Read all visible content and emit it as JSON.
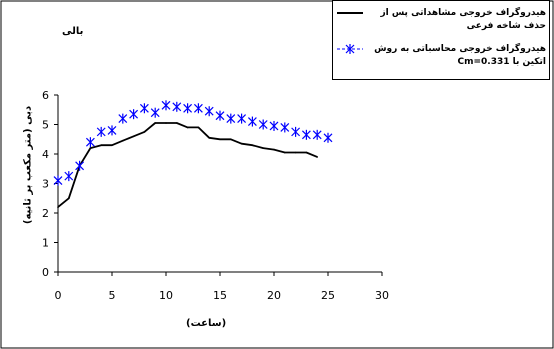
{
  "chart_data": {
    "type": "line",
    "title": "بالی",
    "xlabel": "(ساعت)",
    "ylabel": "دبی (متر مکعب بر ثانیه)",
    "xlim": [
      0,
      30
    ],
    "ylim": [
      0,
      6
    ],
    "xticks": [
      "0",
      "5",
      "10",
      "15",
      "20",
      "25",
      "30"
    ],
    "yticks": [
      "0",
      "1",
      "2",
      "3",
      "4",
      "5",
      "6"
    ],
    "legend_position": "top-right",
    "grid": false,
    "series": [
      {
        "name": "هیدروگراف خروجی مشاهداتی پس از حذف شاخه فرعی",
        "style": "line",
        "color": "#000000",
        "x": [
          0,
          1,
          2,
          3,
          4,
          5,
          6,
          7,
          8,
          9,
          10,
          11,
          12,
          13,
          14,
          15,
          16,
          17,
          18,
          19,
          20,
          21,
          22,
          23,
          24
        ],
        "y": [
          2.2,
          2.5,
          3.6,
          4.2,
          4.3,
          4.3,
          4.45,
          4.6,
          4.75,
          5.05,
          5.05,
          5.05,
          4.9,
          4.9,
          4.55,
          4.5,
          4.5,
          4.35,
          4.3,
          4.2,
          4.15,
          4.05,
          4.05,
          4.05,
          3.9
        ]
      },
      {
        "name": "هیدروگراف خروجی محاسباتی به روش اتکین با Cm=0.331",
        "style": "marker",
        "marker": "asterisk",
        "color": "#0000ff",
        "x": [
          0,
          1,
          2,
          3,
          4,
          5,
          6,
          7,
          8,
          9,
          10,
          11,
          12,
          13,
          14,
          15,
          16,
          17,
          18,
          19,
          20,
          21,
          22,
          23,
          24,
          25
        ],
        "y": [
          3.1,
          3.25,
          3.6,
          4.4,
          4.75,
          4.8,
          5.2,
          5.35,
          5.55,
          5.4,
          5.65,
          5.6,
          5.55,
          5.55,
          5.45,
          5.3,
          5.2,
          5.2,
          5.1,
          5.0,
          4.95,
          4.9,
          4.75,
          4.65,
          4.65,
          4.55
        ]
      }
    ]
  },
  "legend": {
    "item1": "هیدروگراف خروجی مشاهداتی پس از حذف شاخه فرعی",
    "item2": "هیدروگراف خروجی محاسباتی به روش اتکین با Cm=0.331"
  },
  "colors": {
    "observed": "#000000",
    "calculated": "#0000ff"
  }
}
